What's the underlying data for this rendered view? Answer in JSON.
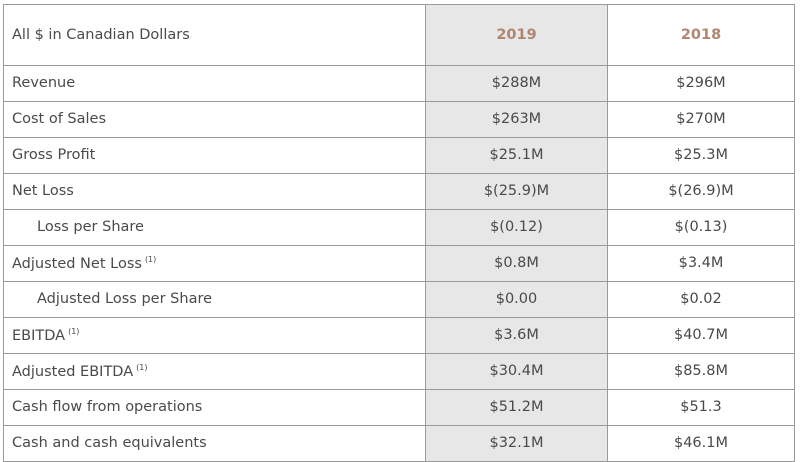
{
  "table": {
    "header": {
      "label": "All $ in Canadian Dollars",
      "col_2019": "2019",
      "col_2018": "2018"
    },
    "rows": [
      {
        "label": "Revenue",
        "footnote": "",
        "v2019": "$288M",
        "v2018": "$296M"
      },
      {
        "label": "Cost of Sales",
        "footnote": "",
        "v2019": "$263M",
        "v2018": "$270M"
      },
      {
        "label": "Gross Profit",
        "footnote": "",
        "v2019": "$25.1M",
        "v2018": "$25.3M"
      },
      {
        "label": "Net Loss",
        "footnote": "",
        "v2019": "$(25.9)M",
        "v2018": "$(26.9)M"
      },
      {
        "label": "Loss per Share",
        "footnote": "",
        "v2019": "$(0.12)",
        "v2018": "$(0.13)"
      },
      {
        "label": "Adjusted Net Loss",
        "footnote": "(1)",
        "v2019": "$0.8M",
        "v2018": "$3.4M"
      },
      {
        "label": "Adjusted Loss per Share",
        "footnote": "",
        "v2019": "$0.00",
        "v2018": "$0.02"
      },
      {
        "label": "EBITDA",
        "footnote": "(1)",
        "v2019": "$3.6M",
        "v2018": "$40.7M"
      },
      {
        "label": "Adjusted EBITDA",
        "footnote": "(1)",
        "v2019": "$30.4M",
        "v2018": "$85.8M"
      },
      {
        "label": "Cash flow from operations",
        "footnote": "",
        "v2019": "$51.2M",
        "v2018": "$51.3"
      },
      {
        "label": "Cash and cash equivalents",
        "footnote": "",
        "v2019": "$32.1M",
        "v2018": "$46.1M"
      }
    ]
  }
}
